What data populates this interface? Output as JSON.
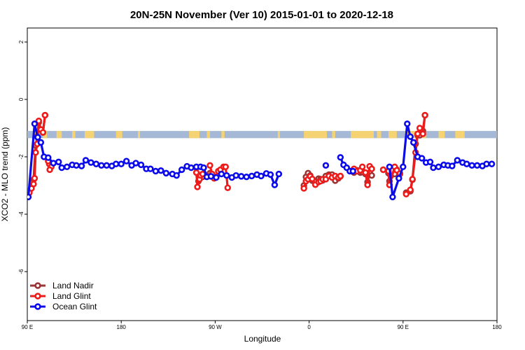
{
  "chart_data": {
    "type": "line",
    "title": "20N-25N November (Ver 10)   2015-01-01 to 2020-12-18",
    "xlabel": "Longitude",
    "ylabel": "XCO2 - MLO trend (ppm)",
    "xlim": [
      90,
      540
    ],
    "ylim": [
      -7.5,
      2.5
    ],
    "x_ticks": [
      {
        "value": 90,
        "label": "90 E"
      },
      {
        "value": 180,
        "label": "180"
      },
      {
        "value": 270,
        "label": "90 W"
      },
      {
        "value": 360,
        "label": "0"
      },
      {
        "value": 450,
        "label": "90 E"
      },
      {
        "value": 540,
        "label": "180"
      }
    ],
    "y_ticks": [
      {
        "value": 2,
        "label": "2"
      },
      {
        "value": 0,
        "label": "0"
      },
      {
        "value": -2,
        "label": "-2"
      },
      {
        "value": -4,
        "label": "-4"
      },
      {
        "value": -6,
        "label": "-6"
      }
    ],
    "grid": false,
    "legend_position": "bottom-left",
    "land_band": {
      "y_range": [
        -1.35,
        -1.1
      ],
      "ocean_color": "#a5b8d6",
      "land_color": "#f5d372"
    },
    "series": [
      {
        "name": "Land Nadir",
        "color": "#9b3535",
        "segments": [
          [
            [
              90.8,
              -3.3
            ],
            [
              92,
              -3.2
            ],
            [
              96,
              -2.8
            ],
            [
              98,
              -1.6
            ],
            [
              99.5,
              -1.3
            ],
            [
              101,
              -0.8
            ],
            [
              103,
              -1.05
            ],
            [
              105,
              -1.15
            ],
            [
              107,
              -0.55
            ]
          ],
          [
            [
              252,
              -2.38
            ],
            [
              254,
              -2.85
            ],
            [
              258,
              -2.7
            ]
          ],
          [
            [
              262,
              -2.65
            ],
            [
              265,
              -2.57
            ]
          ],
          [
            [
              355,
              -3.0
            ],
            [
              357,
              -2.7
            ],
            [
              359,
              -2.57
            ],
            [
              361,
              -2.65
            ],
            [
              363,
              -2.83
            ],
            [
              366,
              -2.87
            ],
            [
              369,
              -2.76
            ],
            [
              371,
              -2.78
            ],
            [
              373,
              -2.82
            ],
            [
              376,
              -2.67
            ],
            [
              379,
              -2.62
            ],
            [
              382,
              -2.62
            ],
            [
              385,
              -2.83
            ],
            [
              388,
              -2.75
            ],
            [
              390,
              -2.68
            ]
          ],
          [
            [
              403,
              -2.55
            ],
            [
              406,
              -2.47
            ],
            [
              409,
              -2.55
            ],
            [
              411,
              -2.53
            ],
            [
              414,
              -2.6
            ],
            [
              416,
              -2.88
            ],
            [
              418,
              -2.55
            ],
            [
              420,
              -2.65
            ]
          ],
          [
            [
              431,
              -2.45
            ],
            [
              436,
              -2.57
            ],
            [
              437,
              -2.85
            ],
            [
              442,
              -2.6
            ],
            [
              444,
              -2.45
            ],
            [
              447,
              -2.6
            ]
          ],
          [
            [
              453,
              -3.25
            ],
            [
              457,
              -3.2
            ],
            [
              459,
              -2.8
            ],
            [
              462,
              -1.55
            ],
            [
              464,
              -1.25
            ],
            [
              466,
              -1.25
            ],
            [
              469,
              -1.1
            ],
            [
              471,
              -0.55
            ]
          ]
        ]
      },
      {
        "name": "Land Glint",
        "color": "#ee1b1b",
        "segments": [
          [
            [
              90.8,
              -3.2
            ],
            [
              92,
              -3.25
            ],
            [
              94,
              -3.1
            ],
            [
              96,
              -2.95
            ],
            [
              97,
              -2.75
            ],
            [
              98,
              -1.85
            ],
            [
              99.5,
              -1.55
            ],
            [
              101,
              -0.75
            ],
            [
              103,
              -1.05
            ],
            [
              105,
              -1.15
            ],
            [
              107,
              -0.55
            ]
          ],
          [
            [
              111,
              -2.25
            ],
            [
              113,
              -2.35
            ]
          ],
          [
            [
              110,
              -2.15
            ],
            [
              111.5,
              -2.45
            ]
          ],
          [
            [
              252,
              -2.55
            ],
            [
              253,
              -3.05
            ],
            [
              255,
              -2.78
            ],
            [
              256,
              -2.65
            ],
            [
              258,
              -2.6
            ]
          ],
          [
            [
              265,
              -2.3
            ],
            [
              267,
              -2.6
            ],
            [
              269,
              -2.75
            ],
            [
              271,
              -2.7
            ],
            [
              273,
              -2.5
            ],
            [
              275,
              -2.45
            ],
            [
              278,
              -2.35
            ],
            [
              280,
              -2.35
            ],
            [
              282,
              -3.08
            ]
          ],
          [
            [
              355,
              -3.1
            ],
            [
              357,
              -2.85
            ],
            [
              359,
              -2.78
            ],
            [
              361,
              -2.68
            ],
            [
              363,
              -2.77
            ],
            [
              366,
              -2.97
            ],
            [
              369,
              -2.88
            ],
            [
              371,
              -2.85
            ],
            [
              373,
              -2.78
            ],
            [
              376,
              -2.78
            ],
            [
              379,
              -2.67
            ],
            [
              382,
              -2.72
            ],
            [
              385,
              -2.67
            ],
            [
              388,
              -2.72
            ],
            [
              390,
              -2.67
            ]
          ],
          [
            [
              403,
              -2.42
            ],
            [
              406,
              -2.5
            ],
            [
              409,
              -2.47
            ],
            [
              411,
              -2.35
            ],
            [
              414,
              -2.55
            ],
            [
              416,
              -2.98
            ],
            [
              418,
              -2.33
            ],
            [
              420,
              -2.42
            ]
          ],
          [
            [
              431,
              -2.45
            ],
            [
              436,
              -2.5
            ],
            [
              437,
              -2.98
            ],
            [
              442,
              -2.35
            ],
            [
              444,
              -2.47
            ],
            [
              447,
              -2.58
            ]
          ],
          [
            [
              453,
              -3.3
            ],
            [
              457,
              -3.15
            ],
            [
              459,
              -2.78
            ],
            [
              462,
              -1.85
            ],
            [
              464,
              -1.2
            ],
            [
              466,
              -1.0
            ],
            [
              469,
              -1.2
            ],
            [
              471,
              -0.55
            ]
          ]
        ]
      },
      {
        "name": "Ocean Glint",
        "color": "#0b0bea",
        "segments": [
          [
            [
              91,
              -3.4
            ],
            [
              97,
              -0.85
            ],
            [
              100,
              -1.32
            ],
            [
              103,
              -1.5
            ],
            [
              106,
              -2.0
            ],
            [
              110,
              -2.03
            ],
            [
              115,
              -2.22
            ],
            [
              120,
              -2.18
            ],
            [
              123,
              -2.38
            ],
            [
              128,
              -2.35
            ],
            [
              133,
              -2.28
            ],
            [
              137,
              -2.3
            ],
            [
              142,
              -2.32
            ],
            [
              146,
              -2.12
            ],
            [
              151,
              -2.2
            ],
            [
              156,
              -2.25
            ],
            [
              161,
              -2.3
            ],
            [
              166,
              -2.3
            ],
            [
              171,
              -2.32
            ],
            [
              175,
              -2.25
            ],
            [
              180,
              -2.25
            ],
            [
              185,
              -2.15
            ],
            [
              190,
              -2.3
            ],
            [
              194,
              -2.22
            ],
            [
              199,
              -2.28
            ],
            [
              204,
              -2.42
            ],
            [
              208,
              -2.42
            ],
            [
              213,
              -2.5
            ],
            [
              218,
              -2.48
            ],
            [
              223,
              -2.57
            ],
            [
              229,
              -2.6
            ],
            [
              233,
              -2.65
            ],
            [
              238,
              -2.45
            ],
            [
              243,
              -2.33
            ],
            [
              247,
              -2.38
            ],
            [
              252,
              -2.35
            ],
            [
              256,
              -2.35
            ],
            [
              259,
              -2.38
            ],
            [
              262,
              -2.7
            ],
            [
              266,
              -2.68
            ],
            [
              271,
              -2.72
            ],
            [
              276,
              -2.6
            ],
            [
              281,
              -2.65
            ],
            [
              286,
              -2.72
            ],
            [
              290,
              -2.65
            ],
            [
              295,
              -2.68
            ],
            [
              300,
              -2.7
            ],
            [
              305,
              -2.67
            ],
            [
              310,
              -2.62
            ],
            [
              314,
              -2.67
            ],
            [
              319,
              -2.58
            ],
            [
              323,
              -2.62
            ],
            [
              327,
              -2.98
            ],
            [
              331,
              -2.6
            ]
          ],
          [
            [
              376,
              -2.3
            ]
          ],
          [
            [
              390,
              -2.02
            ],
            [
              393,
              -2.28
            ],
            [
              396,
              -2.38
            ],
            [
              399,
              -2.5
            ],
            [
              402,
              -2.5
            ]
          ],
          [
            [
              437,
              -2.35
            ],
            [
              440,
              -3.4
            ],
            [
              446,
              -2.75
            ],
            [
              450,
              -2.35
            ],
            [
              454,
              -0.85
            ],
            [
              457,
              -1.3
            ],
            [
              460,
              -1.5
            ],
            [
              464,
              -2.0
            ],
            [
              468,
              -2.05
            ],
            [
              472,
              -2.2
            ],
            [
              476,
              -2.18
            ],
            [
              479,
              -2.38
            ],
            [
              484,
              -2.35
            ],
            [
              489,
              -2.28
            ],
            [
              493,
              -2.3
            ],
            [
              497,
              -2.32
            ],
            [
              502,
              -2.12
            ],
            [
              507,
              -2.2
            ],
            [
              511,
              -2.25
            ],
            [
              516,
              -2.3
            ],
            [
              521,
              -2.3
            ],
            [
              526,
              -2.32
            ],
            [
              530,
              -2.25
            ],
            [
              535,
              -2.25
            ]
          ]
        ]
      }
    ]
  }
}
